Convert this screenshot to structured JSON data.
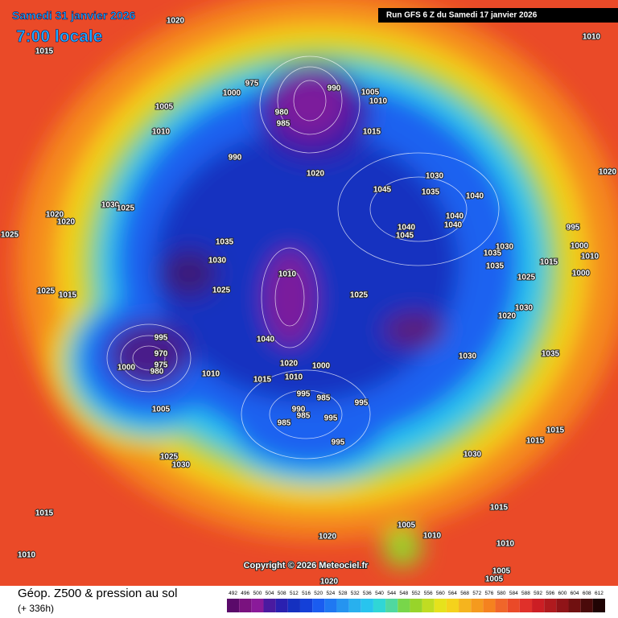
{
  "header": {
    "date": "Samedi 31 janvier 2026",
    "time": "7:00 locale",
    "run": "Run GFS 6 Z du Samedi 17 janvier 2026"
  },
  "copyright": "Copyright © 2026 Meteociel.fr",
  "footer": {
    "title": "Géop. Z500 & pression au sol",
    "lead": "(+ 336h)"
  },
  "colorbar": [
    492,
    496,
    500,
    504,
    508,
    512,
    516,
    520,
    524,
    528,
    532,
    536,
    540,
    544,
    548,
    552,
    556,
    560,
    564,
    568,
    572,
    576,
    580,
    584,
    588,
    592,
    596,
    600,
    604,
    608,
    612
  ],
  "pressure_labels": [
    1020,
    1015,
    1000,
    975,
    990,
    1005,
    1010,
    980,
    985,
    1005,
    1010,
    1015,
    990,
    1020,
    1030,
    1045,
    1035,
    1040,
    1030,
    1025,
    1020,
    1020,
    1025,
    1040,
    1045,
    1040,
    1040,
    1010,
    1020,
    995,
    1000,
    1010,
    1000,
    1035,
    1030,
    1030,
    1035,
    1015,
    1035,
    1025,
    1010,
    1025,
    1025,
    1025,
    1015,
    1030,
    1020,
    995,
    970,
    975,
    980,
    1000,
    1040,
    1010,
    1020,
    1000,
    1010,
    1015,
    1030,
    1035,
    995,
    985,
    995,
    990,
    985,
    995,
    985,
    1005,
    995,
    1015,
    1015,
    1030,
    1025,
    1030,
    1015,
    1020,
    1005,
    1010,
    1015,
    1010,
    1010,
    1005,
    1005,
    1020
  ]
}
